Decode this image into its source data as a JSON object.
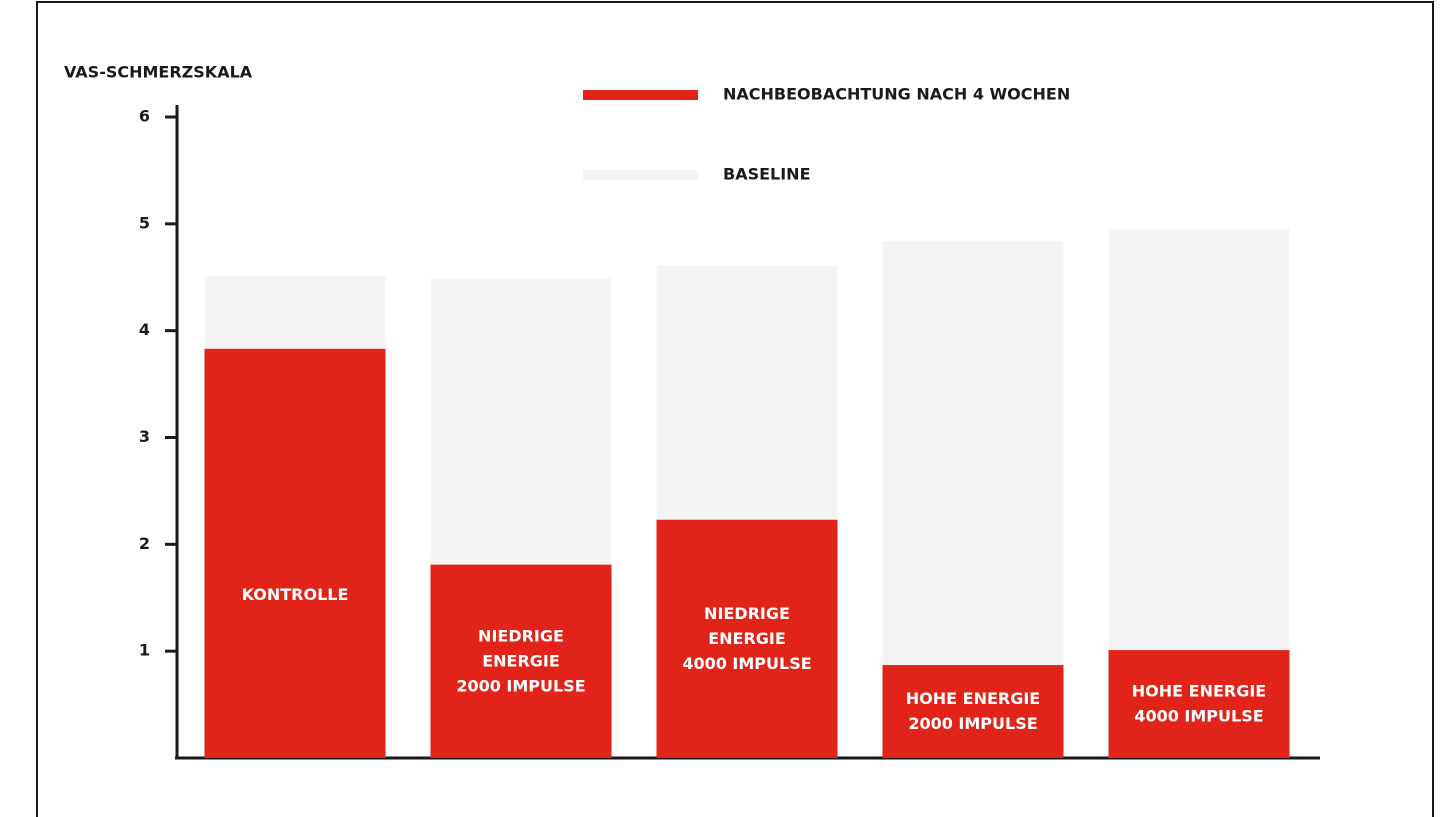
{
  "chart_data": {
    "type": "bar",
    "y_label": "VAS-SCHMERZSKALA",
    "categories": [
      "KONTROLLE",
      "NIEDRIGE\nENERGIE\n2000 IMPULSE",
      "NIEDRIGE\nENERGIE\n4000 IMPULSE",
      "HOHE ENERGIE\n2000 IMPULSE",
      "HOHE ENERGIE\n4000 IMPULSE"
    ],
    "series": [
      {
        "name": "NACHBEOBACHTUNG NACH 4 WOCHEN",
        "color": "#e2231a",
        "values": [
          3.83,
          1.81,
          2.23,
          0.87,
          1.01
        ]
      },
      {
        "name": "BASELINE",
        "color": "#f4f4f4",
        "values": [
          4.51,
          4.49,
          4.61,
          4.84,
          4.95
        ]
      }
    ],
    "ylim": [
      0,
      6
    ],
    "yticks": [
      1,
      2,
      3,
      4,
      5,
      6
    ],
    "legend": "top"
  }
}
